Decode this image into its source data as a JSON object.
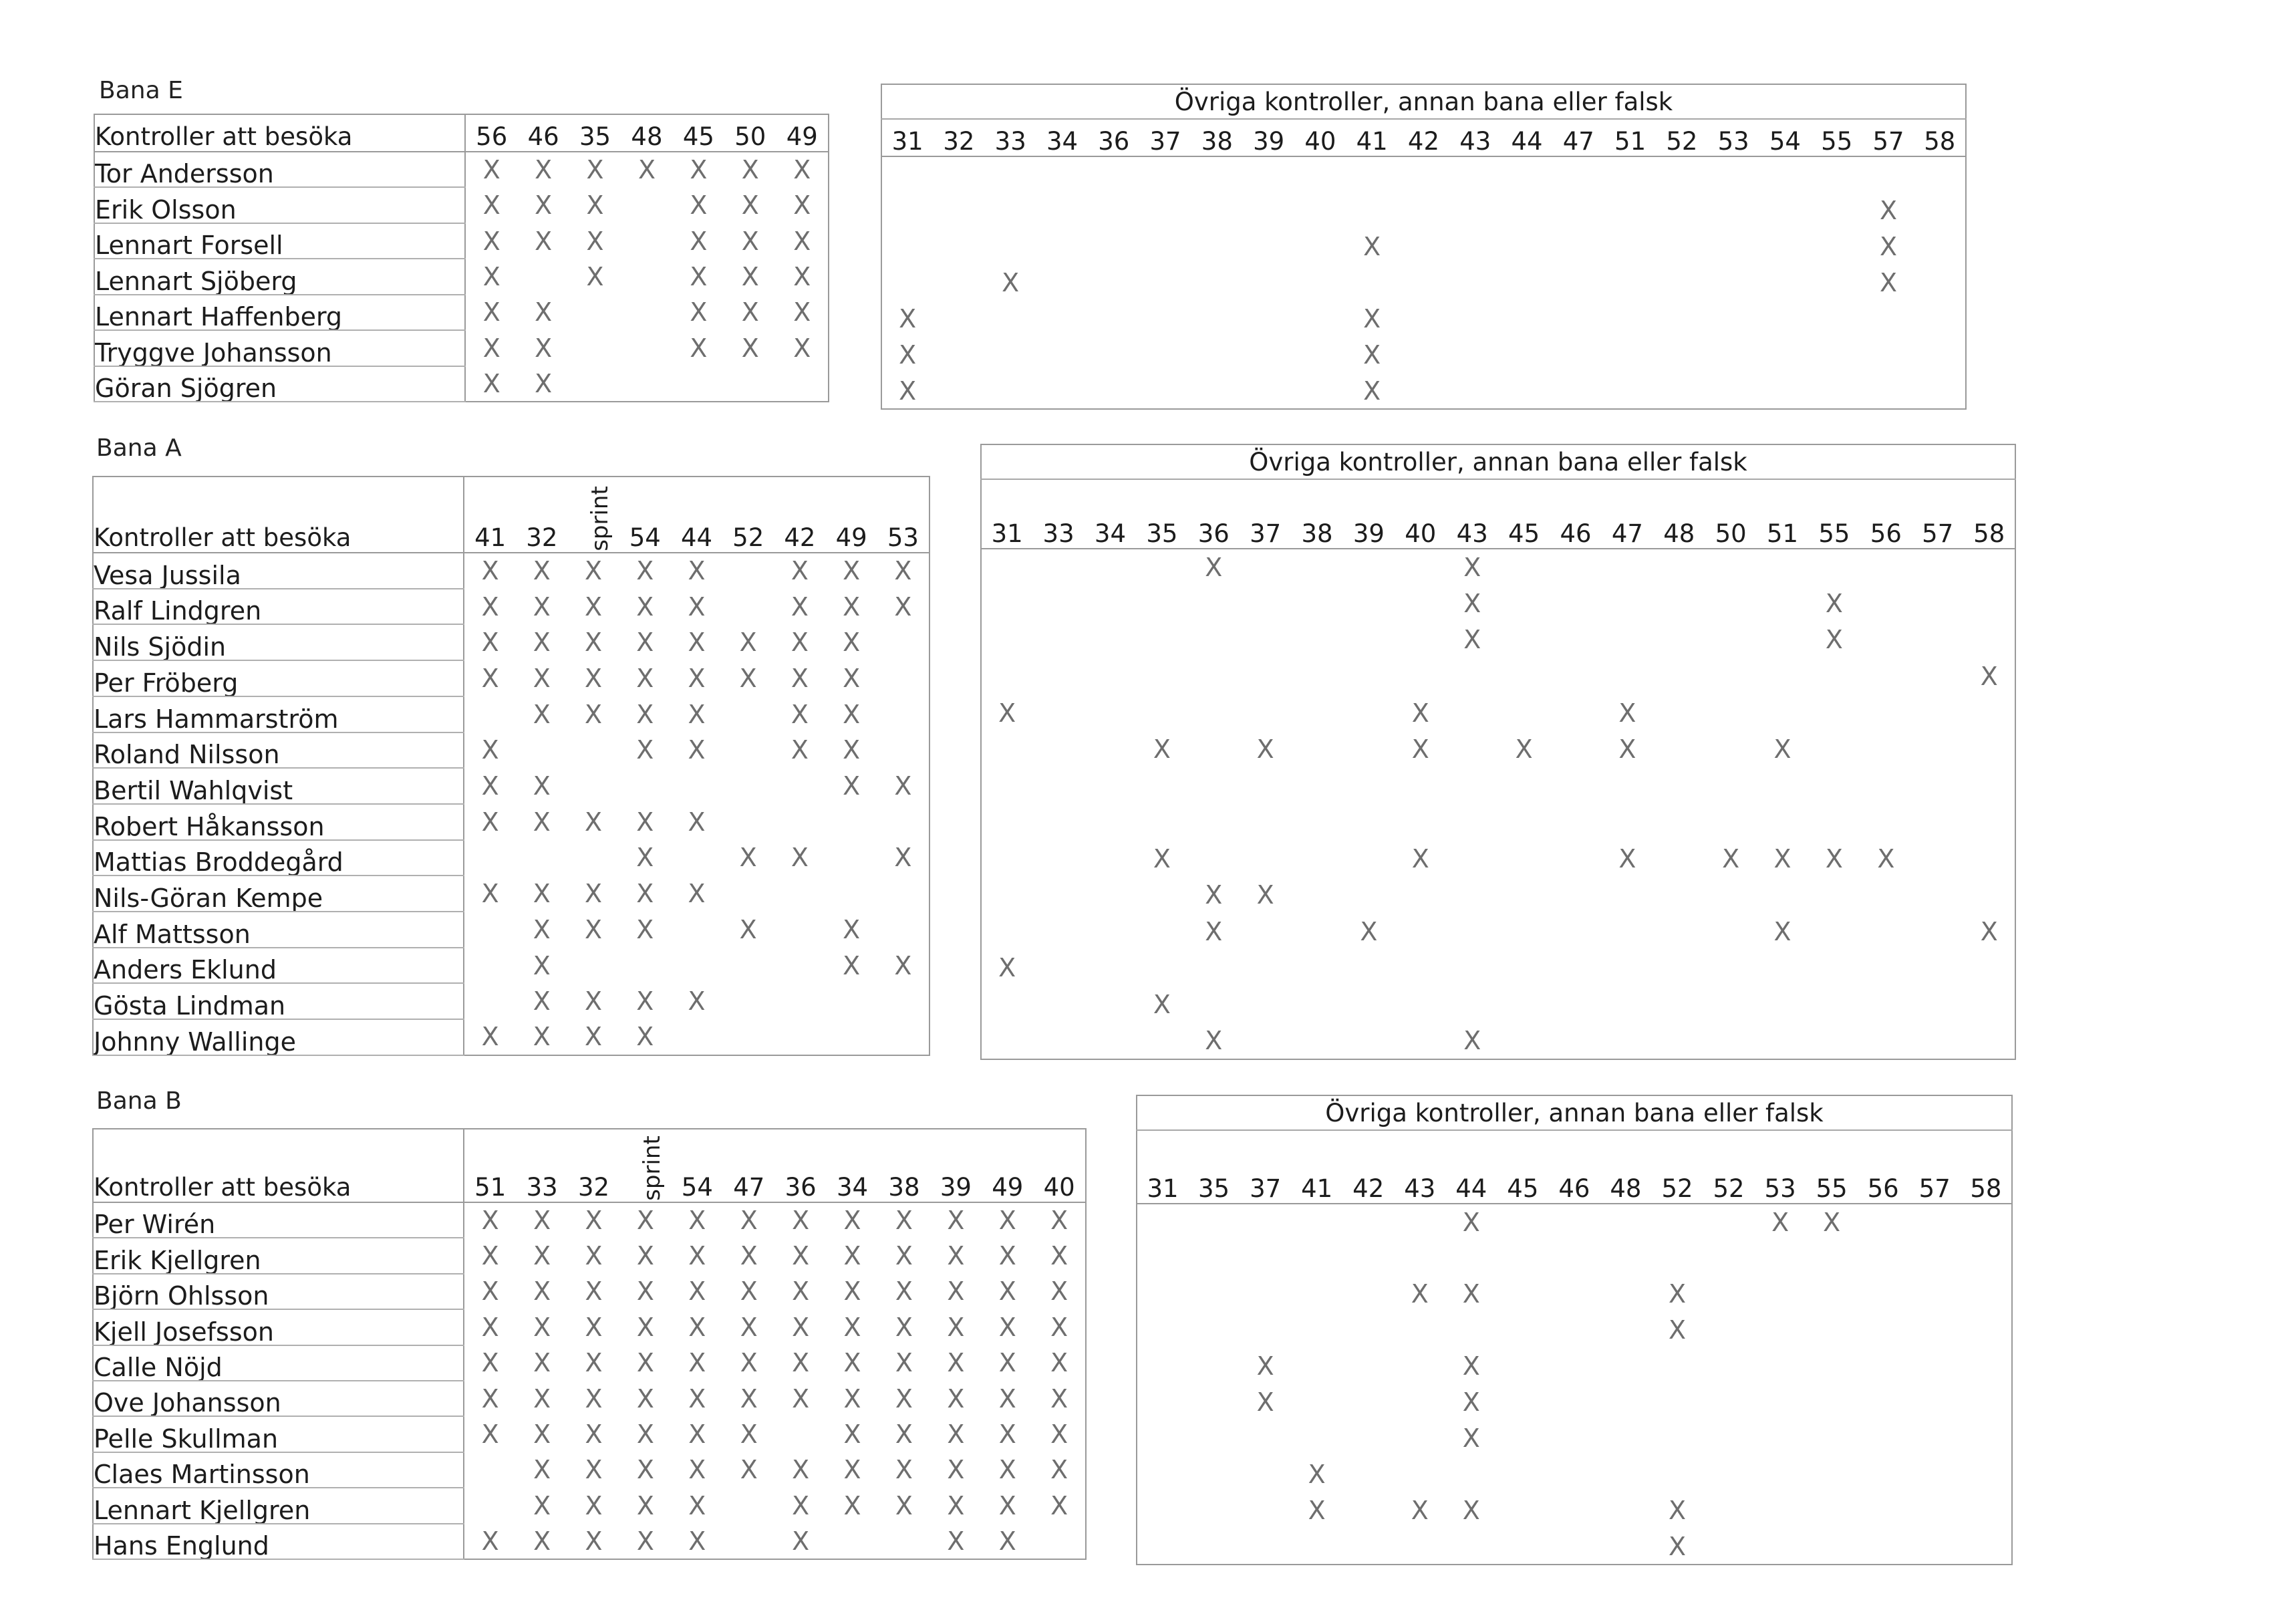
{
  "header_label": "Kontroller att besöka",
  "other_title": "Övriga kontroller, annan bana eller falsk",
  "mark": "X",
  "sections": [
    {
      "title": "Bana E",
      "controls": [
        "56",
        "46",
        "35",
        "48",
        "45",
        "50",
        "49"
      ],
      "runners": [
        {
          "name": "Tor Andersson",
          "marks": [
            1,
            1,
            1,
            1,
            1,
            1,
            1
          ],
          "other": [
            0,
            0,
            0,
            0,
            0,
            0,
            0,
            0,
            0,
            0,
            0,
            0,
            0,
            0,
            0,
            0,
            0,
            0,
            0,
            0,
            0
          ]
        },
        {
          "name": "Erik Olsson",
          "marks": [
            1,
            1,
            1,
            0,
            1,
            1,
            1
          ],
          "other": [
            0,
            0,
            0,
            0,
            0,
            0,
            0,
            0,
            0,
            0,
            0,
            0,
            0,
            0,
            0,
            0,
            0,
            0,
            0,
            1,
            0
          ]
        },
        {
          "name": "Lennart Forsell",
          "marks": [
            1,
            1,
            1,
            0,
            1,
            1,
            1
          ],
          "other": [
            0,
            0,
            0,
            0,
            0,
            0,
            0,
            0,
            0,
            1,
            0,
            0,
            0,
            0,
            0,
            0,
            0,
            0,
            0,
            1,
            0
          ]
        },
        {
          "name": "Lennart Sjöberg",
          "marks": [
            1,
            0,
            1,
            0,
            1,
            1,
            1
          ],
          "other": [
            0,
            0,
            1,
            0,
            0,
            0,
            0,
            0,
            0,
            0,
            0,
            0,
            0,
            0,
            0,
            0,
            0,
            0,
            0,
            1,
            0
          ]
        },
        {
          "name": "Lennart Haffenberg",
          "marks": [
            1,
            1,
            0,
            0,
            1,
            1,
            1
          ],
          "other": [
            1,
            0,
            0,
            0,
            0,
            0,
            0,
            0,
            0,
            1,
            0,
            0,
            0,
            0,
            0,
            0,
            0,
            0,
            0,
            0,
            0
          ]
        },
        {
          "name": "Tryggve Johansson",
          "marks": [
            1,
            1,
            0,
            0,
            1,
            1,
            1
          ],
          "other": [
            1,
            0,
            0,
            0,
            0,
            0,
            0,
            0,
            0,
            1,
            0,
            0,
            0,
            0,
            0,
            0,
            0,
            0,
            0,
            0,
            0
          ]
        },
        {
          "name": "Göran Sjögren",
          "marks": [
            1,
            1,
            0,
            0,
            0,
            0,
            0
          ],
          "other": [
            1,
            0,
            0,
            0,
            0,
            0,
            0,
            0,
            0,
            1,
            0,
            0,
            0,
            0,
            0,
            0,
            0,
            0,
            0,
            0,
            0
          ]
        }
      ],
      "other_controls": [
        "31",
        "32",
        "33",
        "34",
        "36",
        "37",
        "38",
        "39",
        "40",
        "41",
        "42",
        "43",
        "44",
        "47",
        "51",
        "52",
        "53",
        "54",
        "55",
        "57",
        "58"
      ]
    },
    {
      "title": "Bana A",
      "controls": [
        "41",
        "32",
        "sprint",
        "54",
        "44",
        "52",
        "42",
        "49",
        "53"
      ],
      "runners": [
        {
          "name": "Vesa Jussila",
          "marks": [
            1,
            1,
            1,
            1,
            1,
            0,
            1,
            1,
            1
          ],
          "other": [
            0,
            0,
            0,
            0,
            1,
            0,
            0,
            0,
            0,
            1,
            0,
            0,
            0,
            0,
            0,
            0,
            0,
            0,
            0,
            0
          ]
        },
        {
          "name": "Ralf Lindgren",
          "marks": [
            1,
            1,
            1,
            1,
            1,
            0,
            1,
            1,
            1
          ],
          "other": [
            0,
            0,
            0,
            0,
            0,
            0,
            0,
            0,
            0,
            1,
            0,
            0,
            0,
            0,
            0,
            0,
            1,
            0,
            0,
            0
          ]
        },
        {
          "name": "Nils Sjödin",
          "marks": [
            1,
            1,
            1,
            1,
            1,
            1,
            1,
            1,
            0
          ],
          "other": [
            0,
            0,
            0,
            0,
            0,
            0,
            0,
            0,
            0,
            1,
            0,
            0,
            0,
            0,
            0,
            0,
            1,
            0,
            0,
            0
          ]
        },
        {
          "name": "Per Fröberg",
          "marks": [
            1,
            1,
            1,
            1,
            1,
            1,
            1,
            1,
            0
          ],
          "other": [
            0,
            0,
            0,
            0,
            0,
            0,
            0,
            0,
            0,
            0,
            0,
            0,
            0,
            0,
            0,
            0,
            0,
            0,
            0,
            1
          ]
        },
        {
          "name": "Lars Hammarström",
          "marks": [
            0,
            1,
            1,
            1,
            1,
            0,
            1,
            1,
            0
          ],
          "other": [
            1,
            0,
            0,
            0,
            0,
            0,
            0,
            0,
            1,
            0,
            0,
            0,
            1,
            0,
            0,
            0,
            0,
            0,
            0,
            0
          ]
        },
        {
          "name": "Roland Nilsson",
          "marks": [
            1,
            0,
            0,
            1,
            1,
            0,
            1,
            1,
            0
          ],
          "other": [
            0,
            0,
            0,
            1,
            0,
            1,
            0,
            0,
            1,
            0,
            1,
            0,
            1,
            0,
            0,
            1,
            0,
            0,
            0,
            0
          ]
        },
        {
          "name": "Bertil Wahlqvist",
          "marks": [
            1,
            1,
            0,
            0,
            0,
            0,
            0,
            1,
            1
          ],
          "other": [
            0,
            0,
            0,
            0,
            0,
            0,
            0,
            0,
            0,
            0,
            0,
            0,
            0,
            0,
            0,
            0,
            0,
            0,
            0,
            0
          ]
        },
        {
          "name": "Robert Håkansson",
          "marks": [
            1,
            1,
            1,
            1,
            1,
            0,
            0,
            0,
            0
          ],
          "other": [
            0,
            0,
            0,
            0,
            0,
            0,
            0,
            0,
            0,
            0,
            0,
            0,
            0,
            0,
            0,
            0,
            0,
            0,
            0,
            0
          ]
        },
        {
          "name": "Mattias Broddegård",
          "marks": [
            0,
            0,
            0,
            1,
            0,
            1,
            1,
            0,
            1
          ],
          "other": [
            0,
            0,
            0,
            1,
            0,
            0,
            0,
            0,
            1,
            0,
            0,
            0,
            1,
            0,
            1,
            1,
            1,
            1,
            0,
            0
          ]
        },
        {
          "name": "Nils-Göran Kempe",
          "marks": [
            1,
            1,
            1,
            1,
            1,
            0,
            0,
            0,
            0
          ],
          "other": [
            0,
            0,
            0,
            0,
            1,
            1,
            0,
            0,
            0,
            0,
            0,
            0,
            0,
            0,
            0,
            0,
            0,
            0,
            0,
            0
          ]
        },
        {
          "name": "Alf Mattsson",
          "marks": [
            0,
            1,
            1,
            1,
            0,
            1,
            0,
            1,
            0
          ],
          "other": [
            0,
            0,
            0,
            0,
            1,
            0,
            0,
            1,
            0,
            0,
            0,
            0,
            0,
            0,
            0,
            1,
            0,
            0,
            0,
            1
          ]
        },
        {
          "name": "Anders Eklund",
          "marks": [
            0,
            1,
            0,
            0,
            0,
            0,
            0,
            1,
            1
          ],
          "other": [
            1,
            0,
            0,
            0,
            0,
            0,
            0,
            0,
            0,
            0,
            0,
            0,
            0,
            0,
            0,
            0,
            0,
            0,
            0,
            0
          ]
        },
        {
          "name": "Gösta Lindman",
          "marks": [
            0,
            1,
            1,
            1,
            1,
            0,
            0,
            0,
            0
          ],
          "other": [
            0,
            0,
            0,
            1,
            0,
            0,
            0,
            0,
            0,
            0,
            0,
            0,
            0,
            0,
            0,
            0,
            0,
            0,
            0,
            0
          ]
        },
        {
          "name": "Johnny Wallinge",
          "marks": [
            1,
            1,
            1,
            1,
            0,
            0,
            0,
            0,
            0
          ],
          "other": [
            0,
            0,
            0,
            0,
            1,
            0,
            0,
            0,
            0,
            1,
            0,
            0,
            0,
            0,
            0,
            0,
            0,
            0,
            0,
            0
          ]
        }
      ],
      "other_controls": [
        "31",
        "33",
        "34",
        "35",
        "36",
        "37",
        "38",
        "39",
        "40",
        "43",
        "45",
        "46",
        "47",
        "48",
        "50",
        "51",
        "55",
        "56",
        "57",
        "58"
      ]
    },
    {
      "title": "Bana B",
      "controls": [
        "51",
        "33",
        "32",
        "sprint",
        "54",
        "47",
        "36",
        "34",
        "38",
        "39",
        "49",
        "40"
      ],
      "runners": [
        {
          "name": "Per Wirén",
          "marks": [
            1,
            1,
            1,
            1,
            1,
            1,
            1,
            1,
            1,
            1,
            1,
            1
          ],
          "other": [
            0,
            0,
            0,
            0,
            0,
            0,
            1,
            0,
            0,
            0,
            0,
            0,
            1,
            1,
            0,
            0,
            0
          ]
        },
        {
          "name": "Erik Kjellgren",
          "marks": [
            1,
            1,
            1,
            1,
            1,
            1,
            1,
            1,
            1,
            1,
            1,
            1
          ],
          "other": [
            0,
            0,
            0,
            0,
            0,
            0,
            0,
            0,
            0,
            0,
            0,
            0,
            0,
            0,
            0,
            0,
            0
          ]
        },
        {
          "name": "Björn Ohlsson",
          "marks": [
            1,
            1,
            1,
            1,
            1,
            1,
            1,
            1,
            1,
            1,
            1,
            1
          ],
          "other": [
            0,
            0,
            0,
            0,
            0,
            1,
            1,
            0,
            0,
            0,
            1,
            0,
            0,
            0,
            0,
            0,
            0
          ]
        },
        {
          "name": "Kjell Josefsson",
          "marks": [
            1,
            1,
            1,
            1,
            1,
            1,
            1,
            1,
            1,
            1,
            1,
            1
          ],
          "other": [
            0,
            0,
            0,
            0,
            0,
            0,
            0,
            0,
            0,
            0,
            1,
            0,
            0,
            0,
            0,
            0,
            0
          ]
        },
        {
          "name": "Calle Nöjd",
          "marks": [
            1,
            1,
            1,
            1,
            1,
            1,
            1,
            1,
            1,
            1,
            1,
            1
          ],
          "other": [
            0,
            0,
            1,
            0,
            0,
            0,
            1,
            0,
            0,
            0,
            0,
            0,
            0,
            0,
            0,
            0,
            0
          ]
        },
        {
          "name": "Ove Johansson",
          "marks": [
            1,
            1,
            1,
            1,
            1,
            1,
            1,
            1,
            1,
            1,
            1,
            1
          ],
          "other": [
            0,
            0,
            1,
            0,
            0,
            0,
            1,
            0,
            0,
            0,
            0,
            0,
            0,
            0,
            0,
            0,
            0
          ]
        },
        {
          "name": "Pelle Skullman",
          "marks": [
            1,
            1,
            1,
            1,
            1,
            1,
            0,
            1,
            1,
            1,
            1,
            1
          ],
          "other": [
            0,
            0,
            0,
            0,
            0,
            0,
            1,
            0,
            0,
            0,
            0,
            0,
            0,
            0,
            0,
            0,
            0
          ]
        },
        {
          "name": "Claes Martinsson",
          "marks": [
            0,
            1,
            1,
            1,
            1,
            1,
            1,
            1,
            1,
            1,
            1,
            1
          ],
          "other": [
            0,
            0,
            0,
            1,
            0,
            0,
            0,
            0,
            0,
            0,
            0,
            0,
            0,
            0,
            0,
            0,
            0
          ]
        },
        {
          "name": "Lennart Kjellgren",
          "marks": [
            0,
            1,
            1,
            1,
            1,
            0,
            1,
            1,
            1,
            1,
            1,
            1
          ],
          "other": [
            0,
            0,
            0,
            1,
            0,
            1,
            1,
            0,
            0,
            0,
            1,
            0,
            0,
            0,
            0,
            0,
            0
          ]
        },
        {
          "name": "Hans Englund",
          "marks": [
            1,
            1,
            1,
            1,
            1,
            0,
            1,
            0,
            0,
            1,
            1,
            0
          ],
          "other": [
            0,
            0,
            0,
            0,
            0,
            0,
            0,
            0,
            0,
            0,
            1,
            0,
            0,
            0,
            0,
            0,
            0
          ]
        }
      ],
      "other_controls": [
        "31",
        "35",
        "37",
        "41",
        "42",
        "43",
        "44",
        "45",
        "46",
        "48",
        "52",
        "52",
        "53",
        "55",
        "56",
        "57",
        "58"
      ]
    }
  ]
}
